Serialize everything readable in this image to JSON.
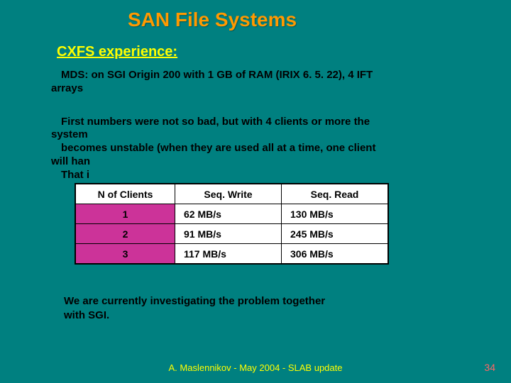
{
  "title": "SAN File Systems",
  "subtitle": "CXFS experience:",
  "para1_line1": "MDS: on SGI Origin 200 with 1 GB of RAM  (IRIX 6. 5. 22), 4 IFT",
  "para1_line2": "arrays",
  "para2_line1": "First numbers were not so bad, but with 4 clients or more the",
  "para2_line2": "system",
  "para2_line3": "becomes unstable (when they are used all at a time, one client",
  "para2_line4": "will han",
  "para2_line5": "That i",
  "table": {
    "headers": [
      "N of Clients",
      "Seq. Write",
      "Seq. Read"
    ],
    "rows": [
      [
        "1",
        "62 MB/s",
        "130 MB/s"
      ],
      [
        "2",
        "91 MB/s",
        "245 MB/s"
      ],
      [
        "3",
        "117 MB/s",
        "306 MB/s"
      ]
    ],
    "first_col_bg": "#cc3399",
    "cell_bg": "#ffffff",
    "border_color": "#000000"
  },
  "para3_line1": "We are currently investigating the problem together",
  "para3_line2": "with SGI.",
  "footer": "A. Maslennikov - May 2004 - SLAB update",
  "pagenum": "34",
  "colors": {
    "background": "#008080",
    "title": "#ff9900",
    "subtitle": "#ffff00",
    "body_text": "#000000",
    "footer": "#ffff00",
    "pagenum": "#ff6666"
  }
}
